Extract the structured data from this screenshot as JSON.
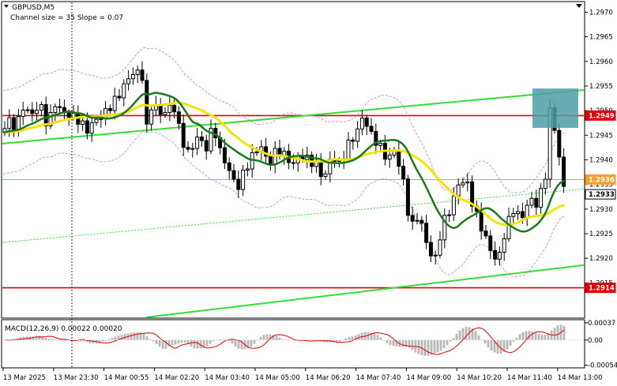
{
  "chart_data": {
    "type": "candlestick",
    "symbol": "GBPUSD,M5",
    "indicator_text": "Channel size = 35 Slope = 0.07",
    "price_range": [
      1.2908,
      1.2972
    ],
    "price_ticks": [
      "1.2970",
      "1.2965",
      "1.2960",
      "1.2955",
      "1.2950",
      "1.2945",
      "1.2940",
      "1.2935",
      "1.2930",
      "1.2925",
      "1.2920",
      "1.2915"
    ],
    "time_labels": [
      "13 Mar 2025",
      "13 Mar 23:30",
      "14 Mar 00:55",
      "14 Mar 02:20",
      "14 Mar 03:40",
      "14 Mar 05:00",
      "14 Mar 06:20",
      "14 Mar 07:40",
      "14 Mar 09:00",
      "14 Mar 10:20",
      "14 Mar 11:40",
      "14 Mar 13:00"
    ],
    "levels": [
      {
        "label": "1.2949",
        "price": 1.2949,
        "color": "#e00000"
      },
      {
        "label": "1.2914",
        "price": 1.2914,
        "color": "#e00000"
      },
      {
        "label": "1.2936",
        "price": 1.2936,
        "color": "#f0a030"
      }
    ],
    "current_price": {
      "label": "1.2933",
      "price": 1.2933
    },
    "macd": {
      "title": "MACD(12,26,9) 0.00022 0.00020",
      "ticks": [
        "0.00037",
        "0.00",
        "-0.00054"
      ],
      "range": [
        -0.00058,
        0.00042
      ]
    },
    "colors": {
      "bull": "#000000",
      "bear": "#000000",
      "ma_fast": "#1a7a1a",
      "ma_slow": "#f5e400",
      "channel": "#33dd33",
      "envelope": "#c878d8",
      "macd_hist": "#b8b8b8",
      "macd_signal": "#e00000",
      "highlight": "#4f9ea6"
    }
  }
}
